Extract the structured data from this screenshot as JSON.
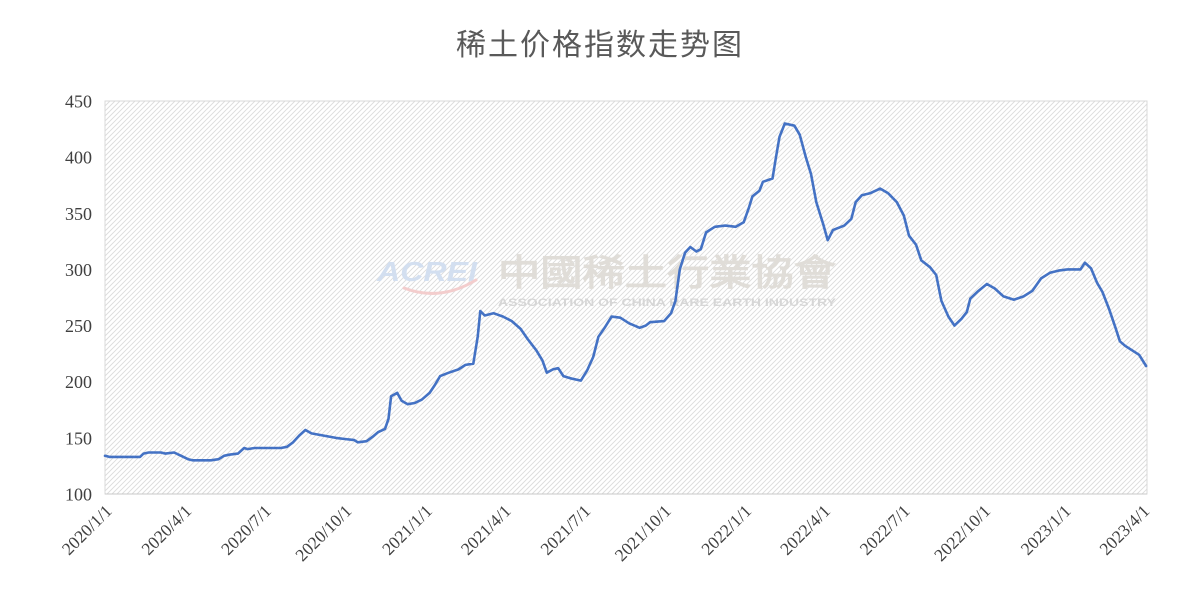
{
  "chart_data": {
    "type": "line",
    "title": "稀土价格指数走势图",
    "grid": false,
    "xlim": [
      "2020/1/1",
      "2023/4/6"
    ],
    "ylim": [
      100,
      450
    ],
    "y_ticks": [
      100,
      150,
      200,
      250,
      300,
      350,
      400,
      450
    ],
    "x_ticks": [
      "2020/1/1",
      "2020/4/1",
      "2020/7/1",
      "2020/10/1",
      "2021/1/1",
      "2021/4/1",
      "2021/7/1",
      "2021/10/1",
      "2022/1/1",
      "2022/4/1",
      "2022/7/1",
      "2022/10/1",
      "2023/1/1",
      "2023/4/1"
    ],
    "x": [
      "2020/1/1",
      "2020/1/6",
      "2020/1/20",
      "2020/2/10",
      "2020/2/14",
      "2020/2/20",
      "2020/3/5",
      "2020/3/10",
      "2020/3/20",
      "2020/3/28",
      "2020/4/5",
      "2020/4/10",
      "2020/5/1",
      "2020/5/10",
      "2020/5/16",
      "2020/5/22",
      "2020/6/1",
      "2020/6/8",
      "2020/6/12",
      "2020/6/20",
      "2020/7/20",
      "2020/7/27",
      "2020/8/3",
      "2020/8/10",
      "2020/8/17",
      "2020/8/24",
      "2020/9/7",
      "2020/9/21",
      "2020/10/1",
      "2020/10/12",
      "2020/10/16",
      "2020/10/26",
      "2020/11/2",
      "2020/11/8",
      "2020/11/16",
      "2020/11/20",
      "2020/11/23",
      "2020/11/30",
      "2020/12/5",
      "2020/12/12",
      "2020/12/20",
      "2020/12/28",
      "2021/1/6",
      "2021/1/12",
      "2021/1/18",
      "2021/1/28",
      "2021/2/8",
      "2021/2/16",
      "2021/2/25",
      "2021/3/2",
      "2021/3/5",
      "2021/3/10",
      "2021/3/20",
      "2021/3/31",
      "2021/4/10",
      "2021/4/20",
      "2021/4/28",
      "2021/5/8",
      "2021/5/15",
      "2021/5/20",
      "2021/5/27",
      "2021/6/2",
      "2021/6/8",
      "2021/6/16",
      "2021/6/28",
      "2021/7/5",
      "2021/7/12",
      "2021/7/18",
      "2021/7/25",
      "2021/8/2",
      "2021/8/12",
      "2021/8/22",
      "2021/9/3",
      "2021/9/10",
      "2021/9/15",
      "2021/10/1",
      "2021/10/9",
      "2021/10/14",
      "2021/10/19",
      "2021/10/25",
      "2021/10/31",
      "2021/11/7",
      "2021/11/12",
      "2021/11/18",
      "2021/11/28",
      "2021/12/10",
      "2021/12/22",
      "2021/12/31",
      "2022/1/6",
      "2022/1/10",
      "2022/1/18",
      "2022/1/22",
      "2022/2/2",
      "2022/2/6",
      "2022/2/10",
      "2022/2/16",
      "2022/2/27",
      "2022/3/5",
      "2022/3/12",
      "2022/3/18",
      "2022/3/24",
      "2022/4/1",
      "2022/4/6",
      "2022/4/12",
      "2022/4/25",
      "2022/5/3",
      "2022/5/8",
      "2022/5/15",
      "2022/5/25",
      "2022/6/5",
      "2022/6/14",
      "2022/6/24",
      "2022/7/2",
      "2022/7/8",
      "2022/7/16",
      "2022/7/22",
      "2022/8/1",
      "2022/8/8",
      "2022/8/14",
      "2022/8/22",
      "2022/8/29",
      "2022/9/6",
      "2022/9/12",
      "2022/9/16",
      "2022/9/24",
      "2022/10/5",
      "2022/10/14",
      "2022/10/24",
      "2022/11/5",
      "2022/11/16",
      "2022/11/26",
      "2022/12/6",
      "2022/12/16",
      "2022/12/26",
      "2023/1/5",
      "2023/1/20",
      "2023/1/25",
      "2023/2/1",
      "2023/2/8",
      "2023/2/14",
      "2023/2/22",
      "2023/3/1",
      "2023/3/6",
      "2023/3/12",
      "2023/3/20",
      "2023/3/28",
      "2023/4/5"
    ],
    "series": [
      {
        "color": "#4472C4",
        "values": [
          134,
          133,
          133,
          133,
          136,
          137,
          137,
          136,
          137,
          134,
          131,
          130,
          130,
          131,
          134,
          135,
          136,
          141,
          140,
          141,
          141,
          142,
          146,
          152,
          157,
          154,
          152,
          150,
          149,
          148,
          146,
          147,
          151,
          155,
          158,
          167,
          187,
          190,
          183,
          180,
          181,
          184,
          190,
          197,
          205,
          208,
          211,
          215,
          216,
          240,
          263,
          259,
          261,
          258,
          254,
          247,
          238,
          228,
          219,
          208,
          211,
          212,
          205,
          203,
          201,
          210,
          222,
          240,
          248,
          258,
          257,
          252,
          248,
          250,
          253,
          254,
          261,
          272,
          300,
          315,
          320,
          316,
          318,
          333,
          338,
          339,
          338,
          342,
          355,
          365,
          370,
          378,
          381,
          400,
          418,
          430,
          428,
          420,
          400,
          385,
          360,
          340,
          326,
          335,
          339,
          345,
          360,
          366,
          368,
          372,
          368,
          360,
          348,
          330,
          322,
          308,
          302,
          295,
          272,
          258,
          250,
          256,
          262,
          274,
          280,
          287,
          283,
          276,
          273,
          276,
          281,
          292,
          297,
          299,
          300,
          300,
          306,
          301,
          288,
          280,
          264,
          248,
          236,
          232,
          228,
          224,
          214
        ]
      }
    ]
  },
  "watermark": {
    "logo_text": "ACREI",
    "name_cn": "中國稀土行業協會",
    "name_en": "ASSOCIATION OF CHINA RARE EARTH INDUSTRY"
  }
}
